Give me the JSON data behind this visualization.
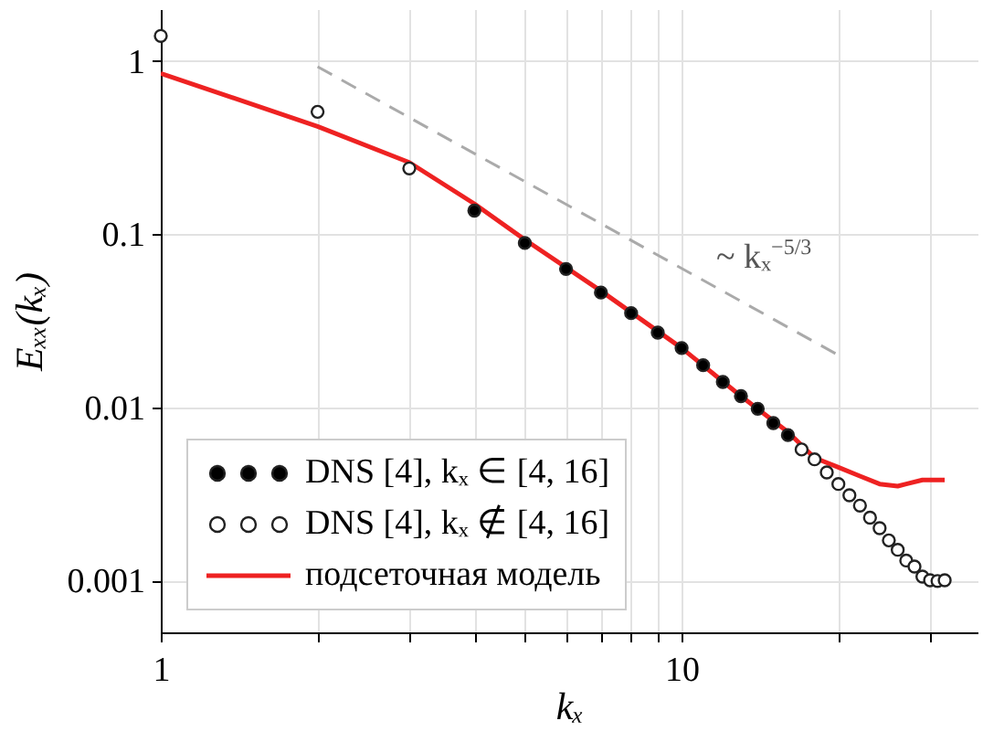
{
  "chart_data": {
    "type": "scatter",
    "xlabel": "kₓ",
    "ylabel": "Eₓₓ(kₓ)",
    "log": "xy",
    "grid": true,
    "legend": "bottom left",
    "marker": "circle",
    "xlim": [
      1,
      37
    ],
    "ylim": [
      0.0005,
      2
    ],
    "xticks": [
      1,
      {
        "value": 2,
        "label": null
      },
      {
        "value": 3,
        "label": null
      },
      {
        "value": 4,
        "label": null
      },
      {
        "value": 5,
        "label": null
      },
      {
        "value": 6,
        "label": null
      },
      {
        "value": 7,
        "label": null
      },
      {
        "value": 8,
        "label": null
      },
      {
        "value": 9,
        "label": null
      },
      10,
      {
        "value": 20,
        "label": null
      },
      {
        "value": 30,
        "label": null
      }
    ],
    "yticks": [
      0.001,
      0.01,
      0.1,
      1
    ],
    "annotations": [
      "~ kₓ$^{−5/3}$"
    ],
    "series": [
      {
        "name": "DNS [4], kₓ ∈ [4, 16]",
        "color": "#000000",
        "x": [
          4,
          5,
          6,
          7,
          8,
          9,
          10,
          11,
          12,
          13,
          14,
          15,
          16
        ],
        "values": [
          0.137,
          0.089,
          0.063,
          0.046,
          0.035,
          0.027,
          0.022,
          0.0175,
          0.014,
          0.0116,
          0.0098,
          0.0081,
          0.0069
        ]
      },
      {
        "name": "DNS [4], kₓ ∉ [4, 16]",
        "color": "#ffffff",
        "x": [
          1,
          2,
          3,
          17,
          18,
          19,
          20,
          21,
          22,
          23,
          24,
          25,
          26,
          27,
          28,
          29,
          30,
          31,
          32
        ],
        "values": [
          1.4,
          0.51,
          0.24,
          0.0057,
          0.005,
          0.0042,
          0.0036,
          0.0031,
          0.0027,
          0.0023,
          0.002,
          0.0017,
          0.0015,
          0.0013,
          0.0012,
          0.00105,
          0.001,
          0.00099,
          0.001
        ]
      },
      {
        "name": "подсеточная модель",
        "type": "line",
        "marker": "none",
        "color": "#ee2222",
        "x": [
          1,
          2,
          3,
          4,
          5,
          7,
          10,
          13,
          16,
          18,
          20,
          22,
          24,
          26,
          27,
          29,
          32
        ],
        "values": [
          0.85,
          0.42,
          0.26,
          0.15,
          0.093,
          0.047,
          0.022,
          0.0116,
          0.0072,
          0.0051,
          0.0045,
          0.004,
          0.0036,
          0.0035,
          0.0036,
          0.0038,
          0.0038
        ]
      },
      {
        "type": "line",
        "marker": "none",
        "color": "#aaaaaa",
        "line_style": "dashed",
        "x": [
          2,
          20
        ],
        "values": [
          0.93,
          0.02
        ]
      }
    ]
  }
}
